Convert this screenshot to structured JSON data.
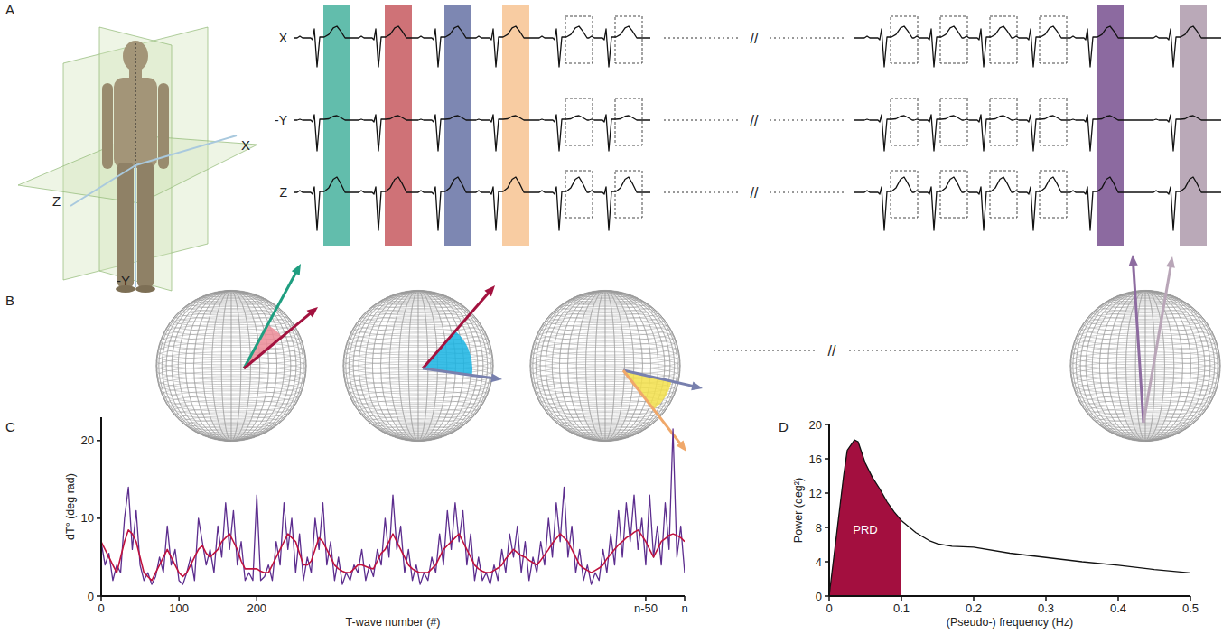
{
  "diagram": {
    "panel_labels": [
      "A",
      "B",
      "C",
      "D"
    ],
    "body_axes": {
      "x": "X",
      "y": "-Y",
      "z": "Z"
    },
    "leads": [
      "X",
      "-Y",
      "Z"
    ],
    "break_mark": "//",
    "window_colors": [
      "#62bdac",
      "#cf7277",
      "#7d87b2",
      "#f8cca2",
      "#8c6aa0",
      "#baa9b8"
    ],
    "arrow_colors": [
      "#1f9e80",
      "#a3123f",
      "#7880ae",
      "#f0a86a",
      "#8d6ba0",
      "#b9a6b8"
    ],
    "wedge_colors": [
      "#ec8c98",
      "#19b4e3",
      "#f3e04b"
    ]
  },
  "chart_data": [
    {
      "type": "line",
      "x_label": "T-wave number (#)",
      "y_label": "dT° (deg rad)",
      "xlim": [
        0,
        750
      ],
      "xticks": [
        0,
        100,
        200,
        {
          "value": 700,
          "label": "n-50"
        },
        {
          "value": 750,
          "label": "n"
        }
      ],
      "ylim": [
        0,
        23
      ],
      "yticks": [
        0,
        10,
        20
      ],
      "x": [
        0,
        5,
        10,
        15,
        20,
        25,
        30,
        35,
        40,
        45,
        50,
        55,
        60,
        65,
        70,
        75,
        80,
        85,
        90,
        95,
        100,
        105,
        110,
        115,
        120,
        125,
        130,
        135,
        140,
        145,
        150,
        155,
        160,
        165,
        170,
        175,
        180,
        185,
        190,
        195,
        200,
        205,
        210,
        215,
        220,
        225,
        230,
        235,
        240,
        245,
        250,
        255,
        260,
        265,
        270,
        275,
        280,
        285,
        290,
        295,
        300,
        305,
        310,
        315,
        320,
        325,
        330,
        335,
        340,
        345,
        350,
        355,
        360,
        365,
        370,
        375,
        380,
        385,
        390,
        395,
        400,
        405,
        410,
        415,
        420,
        425,
        430,
        435,
        440,
        445,
        450,
        455,
        460,
        465,
        470,
        475,
        480,
        485,
        490,
        495,
        500,
        505,
        510,
        515,
        520,
        525,
        530,
        535,
        540,
        545,
        550,
        555,
        560,
        565,
        570,
        575,
        580,
        585,
        590,
        595,
        600,
        605,
        610,
        615,
        620,
        625,
        630,
        635,
        640,
        645,
        650,
        655,
        660,
        665,
        670,
        675,
        680,
        685,
        690,
        695,
        700,
        705,
        710,
        715,
        720,
        725,
        730,
        735,
        740,
        745,
        750
      ],
      "series": [
        {
          "color": "#5c2d8e",
          "values": [
            7,
            4,
            5.5,
            2,
            4,
            3,
            10,
            14,
            6,
            11,
            4,
            2,
            3,
            1.5,
            2.5,
            5,
            3,
            9,
            4,
            6,
            2,
            1.5,
            3,
            5,
            2,
            10,
            7,
            4,
            6,
            3,
            9,
            5,
            12,
            6,
            11,
            4,
            7,
            2,
            3,
            2,
            13,
            2,
            2.5,
            4,
            2,
            7,
            4,
            12,
            6,
            10,
            3,
            8,
            2,
            5,
            3,
            10,
            6,
            12,
            4,
            7,
            2,
            5,
            1.5,
            3,
            2,
            4,
            3,
            6,
            2,
            4,
            2.5,
            6,
            4,
            10,
            5,
            13,
            6,
            9,
            3,
            6,
            2,
            4,
            1.5,
            3,
            2,
            5,
            3,
            8,
            4,
            11,
            6,
            12,
            7,
            11,
            4,
            8,
            2,
            5,
            2,
            3,
            1.5,
            4,
            2,
            6,
            3,
            8,
            5,
            9,
            3,
            7,
            2,
            5,
            3,
            7,
            4,
            10,
            5,
            12,
            7,
            14,
            5,
            9,
            3,
            6,
            2,
            4,
            1.5,
            3,
            2,
            6,
            3,
            8,
            4,
            11,
            5,
            12,
            7,
            13,
            6,
            10,
            4,
            13,
            5,
            9,
            4,
            12,
            6,
            21.5,
            5,
            9,
            3
          ]
        },
        {
          "color": "#c0123e",
          "values": [
            7,
            6,
            5,
            4,
            3,
            5,
            7,
            8.5,
            8,
            7,
            5,
            3,
            2.5,
            2,
            3,
            4,
            5,
            6,
            5,
            4,
            3,
            2.5,
            3,
            4,
            5,
            6,
            6.5,
            5.5,
            5,
            5.5,
            6,
            7,
            7.5,
            8,
            7,
            6,
            4.5,
            3.5,
            3.5,
            3.5,
            3.5,
            3.2,
            3,
            3,
            4,
            5,
            6,
            7,
            8,
            7.5,
            7,
            5.5,
            4,
            4,
            4.5,
            6,
            7.5,
            7,
            6,
            5,
            4,
            3.5,
            3.2,
            3,
            3,
            3.5,
            4,
            4,
            3.8,
            3.6,
            3.5,
            4.5,
            5.5,
            6,
            7,
            8,
            7,
            6,
            5,
            4,
            3.5,
            3.2,
            3,
            3,
            3,
            3.5,
            4,
            5,
            6,
            6.5,
            7,
            7.5,
            8,
            7,
            6,
            5,
            4,
            3.5,
            3.2,
            3,
            3,
            3.3,
            3.6,
            4,
            4.8,
            5.4,
            6,
            5.6,
            5.2,
            5,
            4.6,
            4.3,
            4,
            4.6,
            5.3,
            6,
            6.8,
            7.4,
            8,
            7.5,
            7,
            6,
            5,
            4,
            3.6,
            3.3,
            3,
            3.3,
            3.6,
            4,
            4.8,
            5.4,
            6,
            6.6,
            7,
            7.5,
            7.8,
            8.2,
            8.5,
            7.8,
            7,
            6,
            5,
            6,
            7,
            7.4,
            7.8,
            8,
            7.8,
            7.5,
            7
          ]
        }
      ]
    },
    {
      "type": "line",
      "x_label": "(Pseudo-) frequency (Hz)",
      "y_label": "Power (deg²)",
      "xlim": [
        0,
        0.5
      ],
      "xticks": [
        0,
        0.1,
        0.2,
        0.3,
        0.4,
        0.5
      ],
      "ylim": [
        0,
        20
      ],
      "yticks": [
        0,
        4,
        8,
        12,
        16,
        20
      ],
      "x": [
        0,
        0.01,
        0.02,
        0.025,
        0.03,
        0.035,
        0.04,
        0.05,
        0.06,
        0.07,
        0.08,
        0.09,
        0.1,
        0.12,
        0.14,
        0.15,
        0.17,
        0.2,
        0.25,
        0.3,
        0.35,
        0.4,
        0.45,
        0.5
      ],
      "series": [
        {
          "color": "#111111",
          "values": [
            0,
            7,
            14,
            17,
            17.6,
            18.2,
            18,
            15.5,
            13.8,
            12.5,
            11,
            9.8,
            8.8,
            7.4,
            6.4,
            6.1,
            5.8,
            5.7,
            5,
            4.5,
            4,
            3.6,
            3.1,
            2.7
          ]
        }
      ],
      "annotations": [
        {
          "text": "PRD",
          "x_range": [
            0,
            0.1
          ],
          "color": "#a30f3f"
        }
      ]
    }
  ]
}
